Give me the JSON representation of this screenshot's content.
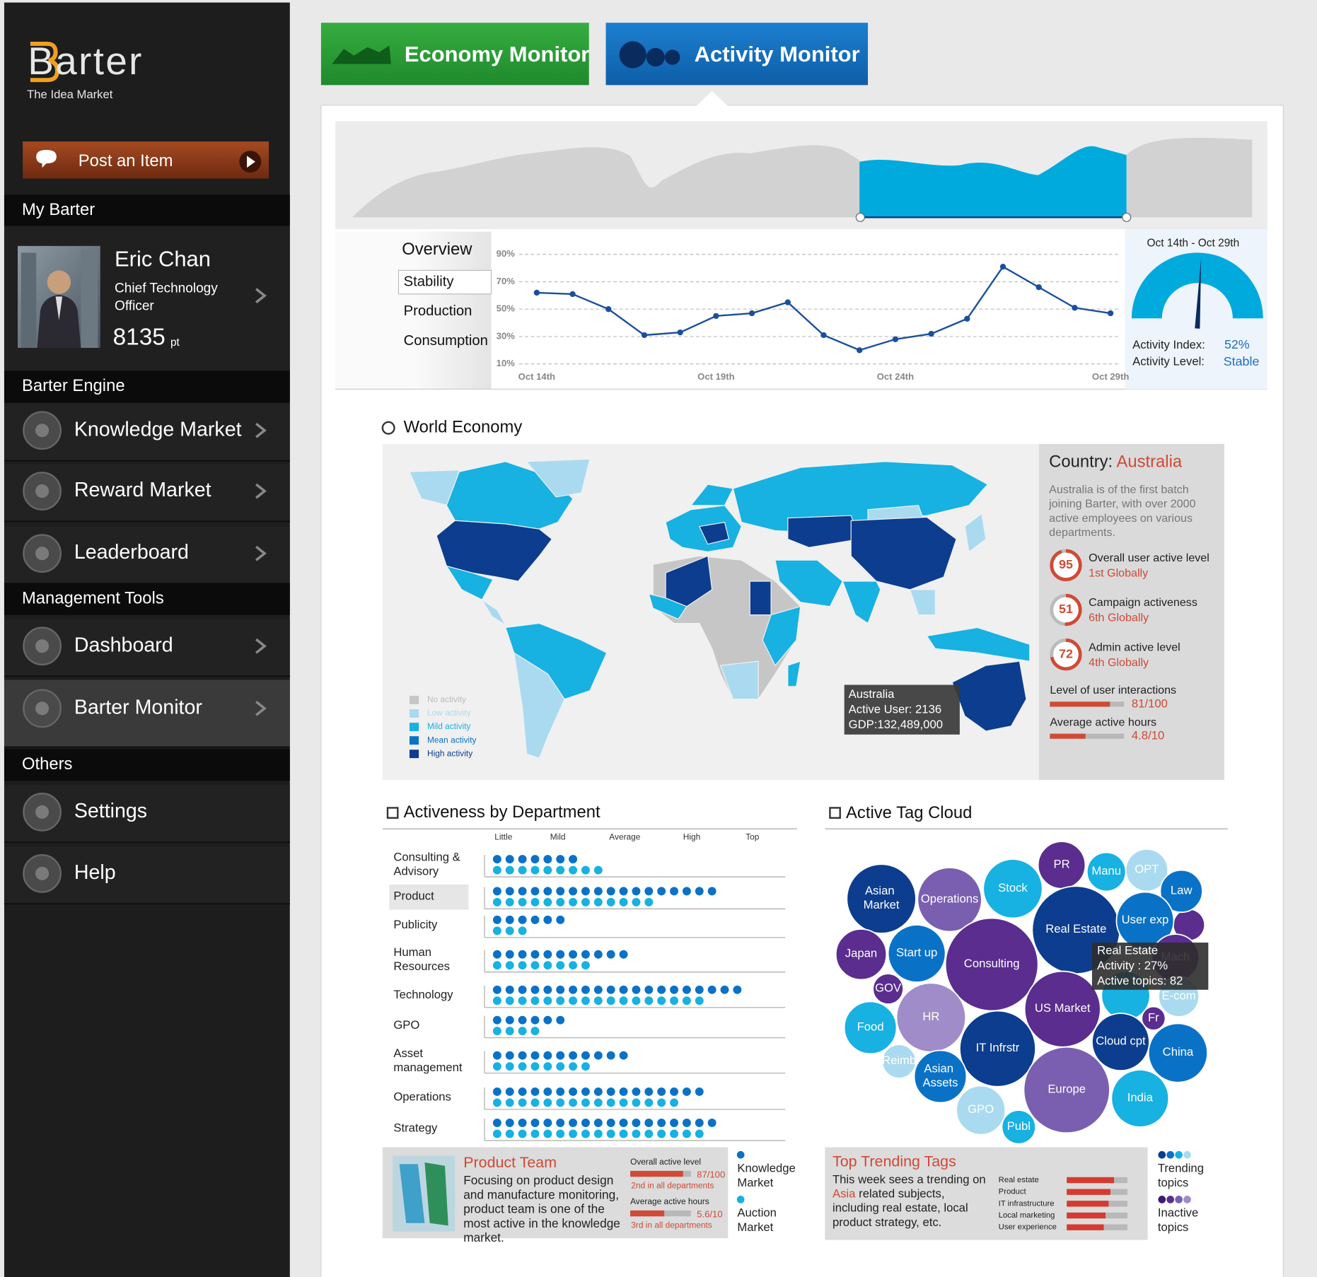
{
  "sidebar": {
    "logo": "Barter",
    "tagline": "The Idea Market",
    "post_button": "Post an Item",
    "profile_section": "My Barter",
    "profile": {
      "name": "Eric Chan",
      "role": "Chief Technology Officer",
      "points": 8135,
      "points_unit": "pt"
    },
    "groups": [
      {
        "title": "Barter Engine",
        "items": [
          "Knowledge Market",
          "Reward Market",
          "Leaderboard"
        ]
      },
      {
        "title": "Management Tools",
        "items": [
          "Dashboard",
          "Barter Monitor"
        ]
      },
      {
        "title": "Others",
        "items": [
          "Settings",
          "Help"
        ]
      }
    ],
    "active_item": "Barter Monitor"
  },
  "tabs": [
    "Economy Monitor",
    "Activity Monitor"
  ],
  "overview": {
    "menu": [
      "Overview",
      "Stability",
      "Production",
      "Consumption"
    ],
    "active_menu": 1,
    "chart_data": {
      "type": "line",
      "categories": [
        "Oct 14th",
        null,
        null,
        null,
        null,
        "Oct 19th",
        null,
        null,
        null,
        null,
        "Oct 24th",
        null,
        null,
        null,
        null,
        null,
        "Oct 29th"
      ],
      "values": [
        62,
        61,
        50,
        31,
        33,
        45,
        47,
        55,
        31,
        20,
        28,
        32,
        43,
        81,
        66,
        51,
        47
      ],
      "color": "#1a4f9c",
      "ylim": [
        10,
        90
      ],
      "yticks": [
        {
          "value": 90,
          "label": "90%"
        },
        {
          "value": 70,
          "label": "70%"
        },
        {
          "value": 50,
          "label": "50%"
        },
        {
          "value": 30,
          "label": "30%"
        },
        {
          "value": 10,
          "label": "10%"
        }
      ],
      "grid": true
    },
    "gauge": {
      "type": "gauge",
      "title": "Oct 14th - Oct 29th",
      "value": 52,
      "value_label": "52%",
      "ylim": [
        0,
        100
      ],
      "index_label": "Activity Index:",
      "level_label": "Activity Level:",
      "level": "Stable",
      "color": "#00aadd"
    }
  },
  "world": {
    "title": "World Economy",
    "legend": [
      {
        "name": "No activity",
        "color": "#c6c6c6"
      },
      {
        "name": "Low activity",
        "color": "#a9daf0"
      },
      {
        "name": "Mild activity",
        "color": "#17b1e2"
      },
      {
        "name": "Mean activity",
        "color": "#0a72c6"
      },
      {
        "name": "High activity",
        "color": "#0c3d8e"
      }
    ],
    "tooltip": [
      "Australia",
      "Active User: 2136",
      "GDP:132,489,000"
    ],
    "country": {
      "label": "Country:",
      "name": "Australia",
      "description": "Australia is of the first batch joining Barter, with over 2000 active employees on various departments.",
      "metrics": [
        {
          "value": 95,
          "label": "Overall user active level",
          "rank": "1st Globally"
        },
        {
          "value": 51,
          "label": "Campaign activeness",
          "rank": "6th Globally"
        },
        {
          "value": 72,
          "label": "Admin active level",
          "rank": "4th Globally"
        }
      ],
      "bars": [
        {
          "label": "Level of user interactions",
          "value": 81,
          "max": 100,
          "value_label": "81/100"
        },
        {
          "label": "Average active hours",
          "value": 4.8,
          "max": 10,
          "value_label": "4.8/10"
        }
      ]
    }
  },
  "departments": {
    "title": "Activeness by Department",
    "highlight": 1,
    "chart_data": {
      "type": "dot",
      "categories": [
        "Consulting & Advisory",
        "Product",
        "Publicity",
        "Human Resources",
        "Technology",
        "GPO",
        "Asset management",
        "Operations",
        "Strategy"
      ],
      "series": [
        {
          "name": "Knowledge Market",
          "color": "#0a72c6",
          "values": [
            7,
            18,
            6,
            11,
            20,
            6,
            11,
            17,
            18
          ]
        },
        {
          "name": "Auction Market",
          "color": "#17b1e2",
          "values": [
            9,
            13,
            3,
            8,
            17,
            4,
            8,
            15,
            17
          ]
        }
      ],
      "xlim": [
        0,
        23.8
      ],
      "xticks": [
        {
          "value": 1.5,
          "label": "Little"
        },
        {
          "value": 5.8,
          "label": "Mild"
        },
        {
          "value": 11.1,
          "label": "Average"
        },
        {
          "value": 16.4,
          "label": "High"
        },
        {
          "value": 21.2,
          "label": "Top"
        }
      ]
    },
    "team": {
      "title": "Product Team",
      "description": "Focusing on product design and manufacture monitoring, product team is one of the most active in the knowledge market.",
      "metrics": [
        {
          "label": "Overall active level",
          "value": 87,
          "max": 100,
          "value_label": "87/100",
          "rank": "2nd in all departments"
        },
        {
          "label": "Average active hours",
          "value": 5.6,
          "max": 10,
          "value_label": "5.6/10",
          "rank": "3rd in all departments"
        }
      ]
    }
  },
  "tags": {
    "title": "Active Tag Cloud",
    "bubbles": [
      {
        "name": "Asian Market",
        "color": "#0c3d8e"
      },
      {
        "name": "Operations",
        "color": "#7a5fb0"
      },
      {
        "name": "Stock",
        "color": "#17b1e2"
      },
      {
        "name": "PR",
        "color": "#5a2d8e"
      },
      {
        "name": "Manu",
        "color": "#17b1e2"
      },
      {
        "name": "OPT",
        "color": "#a9daf0"
      },
      {
        "name": "Law",
        "color": "#0a72c6"
      },
      {
        "name": "Real Estate",
        "color": "#0c3d8e"
      },
      {
        "name": "User exp",
        "color": "#0a72c6"
      },
      {
        "name": "Japan",
        "color": "#5a2d8e"
      },
      {
        "name": "Start up",
        "color": "#0a72c6"
      },
      {
        "name": "Consulting",
        "color": "#5a2d8e"
      },
      {
        "name": "GOV",
        "color": "#5a2d8e"
      },
      {
        "name": "Mach",
        "color": "#5a2d8e"
      },
      {
        "name": "E-com",
        "color": "#a9daf0"
      },
      {
        "name": "HR",
        "color": "#a08cc8"
      },
      {
        "name": "US Market",
        "color": "#5a2d8e"
      },
      {
        "name": "Fr",
        "color": "#5a2d8e"
      },
      {
        "name": "Food",
        "color": "#17b1e2"
      },
      {
        "name": "Cloud cpt",
        "color": "#0c3d8e"
      },
      {
        "name": "China",
        "color": "#0a72c6"
      },
      {
        "name": "IT Infrstr",
        "color": "#0c3d8e"
      },
      {
        "name": "Reimb",
        "color": "#a9daf0"
      },
      {
        "name": "Asian Assets",
        "color": "#0a72c6"
      },
      {
        "name": "Europe",
        "color": "#7a5fb0"
      },
      {
        "name": "India",
        "color": "#17b1e2"
      },
      {
        "name": "GPO",
        "color": "#a9daf0"
      },
      {
        "name": "Publ",
        "color": "#17b1e2"
      }
    ],
    "tooltip": [
      "Real Estate",
      "Activity : 27%",
      "Active topics: 82"
    ],
    "trending": {
      "title": "Top Trending Tags",
      "text_before": "This week sees a trending on",
      "highlight": "Asia",
      "text_after": "related subjects, including real estate, local product strategy, etc.",
      "chart_data": {
        "type": "bar",
        "orientation": "horizontal",
        "categories": [
          "Real estate",
          "Product",
          "IT infrastructure",
          "Local marketing",
          "User experience"
        ],
        "values": [
          78,
          72,
          69,
          64,
          61
        ],
        "color": "#d63b2f",
        "xlim": [
          0,
          100
        ]
      }
    },
    "legend": [
      {
        "name": "Trending topics",
        "colors": [
          "#0c3d8e",
          "#0a72c6",
          "#17b1e2",
          "#a9daf0"
        ]
      },
      {
        "name": "Inactive topics",
        "colors": [
          "#3e1a6e",
          "#5a2d8e",
          "#7a5fb0",
          "#a08cc8"
        ]
      }
    ]
  }
}
